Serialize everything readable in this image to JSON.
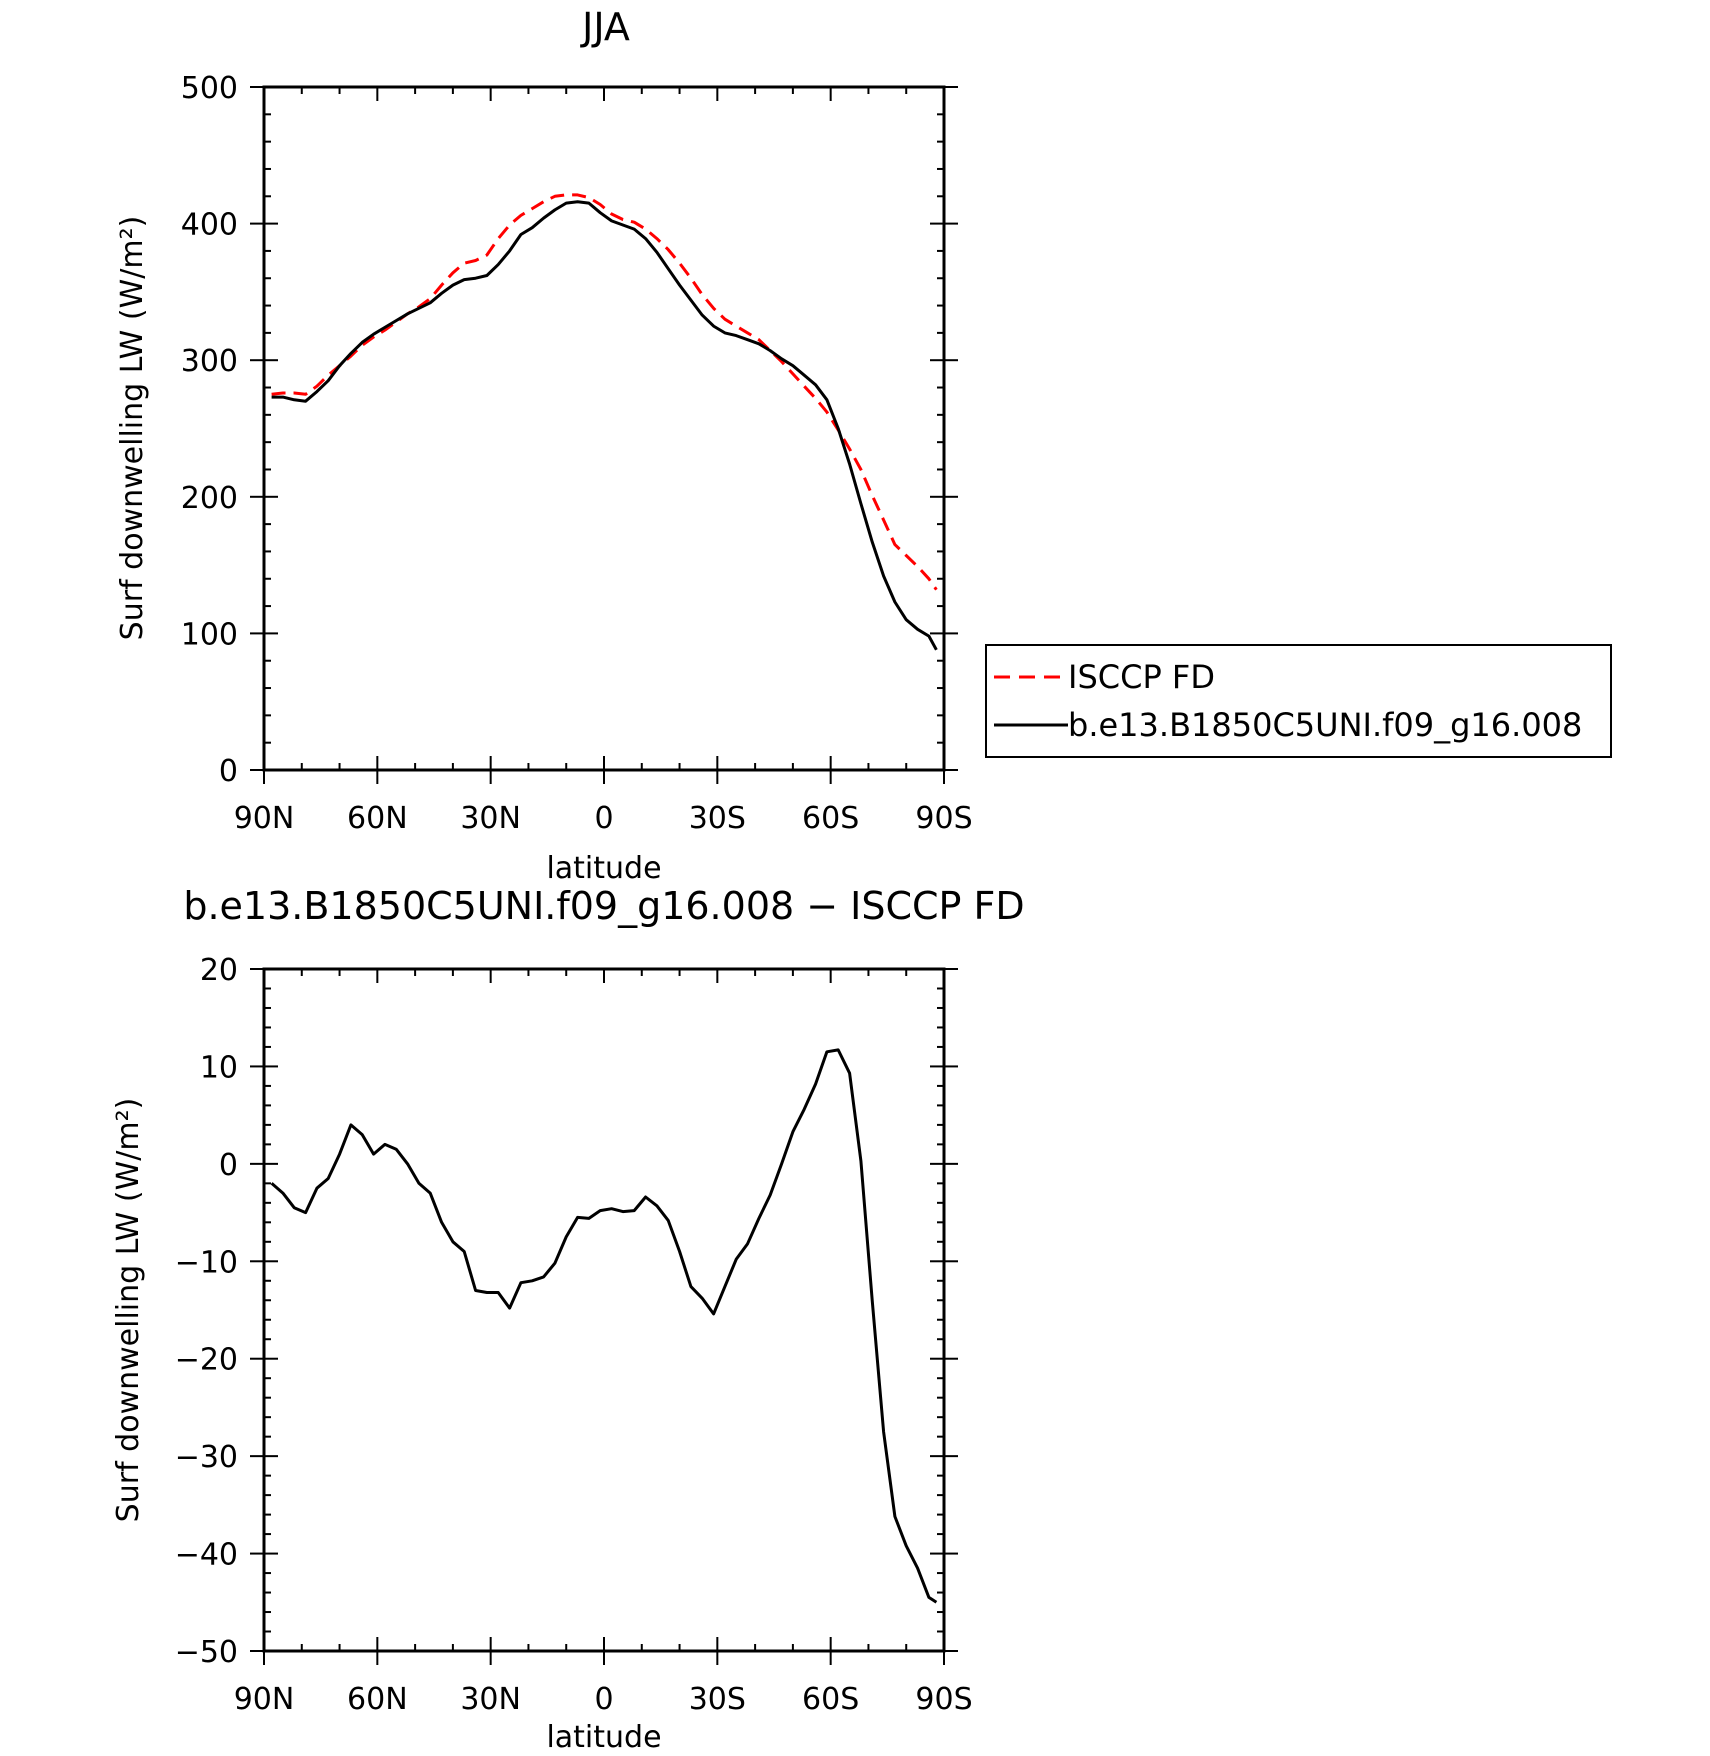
{
  "chart_data": [
    {
      "type": "line",
      "title": "JJA",
      "xlabel": "latitude",
      "ylabel": "Surf downwelling LW (W/m²)",
      "xlim": [
        90,
        -90
      ],
      "ylim": [
        0,
        500
      ],
      "xticks": [
        90,
        60,
        30,
        0,
        -30,
        -60,
        -90
      ],
      "xtick_labels": [
        "90N",
        "60N",
        "30N",
        "0",
        "30S",
        "60S",
        "90S"
      ],
      "yticks": [
        0,
        100,
        200,
        300,
        400,
        500
      ],
      "ytick_labels": [
        "0",
        "100",
        "200",
        "300",
        "400",
        "500"
      ],
      "legend_position": "right",
      "x": [
        88,
        85,
        82,
        79,
        76,
        73,
        70,
        67,
        64,
        61,
        58,
        55,
        52,
        49,
        46,
        43,
        40,
        37,
        34,
        31,
        28,
        25,
        22,
        19,
        16,
        13,
        10,
        7,
        4,
        1,
        -2,
        -5,
        -8,
        -11,
        -14,
        -17,
        -20,
        -23,
        -26,
        -29,
        -32,
        -35,
        -38,
        -41,
        -44,
        -47,
        -50,
        -53,
        -56,
        -59,
        -62,
        -65,
        -68,
        -71,
        -74,
        -77,
        -80,
        -83,
        -86,
        -88
      ],
      "series": [
        {
          "name": "ISCCP FD",
          "color": "#ff0000",
          "dash": "dashed",
          "values": [
            275,
            276,
            276,
            275,
            281,
            289,
            296,
            303,
            311,
            317,
            322,
            328,
            334,
            339,
            345,
            355,
            364,
            371,
            373,
            377,
            389,
            399,
            406,
            411,
            416,
            420,
            421,
            421,
            419,
            414,
            407,
            403,
            401,
            396,
            389,
            381,
            371,
            360,
            348,
            338,
            330,
            325,
            320,
            315,
            307,
            299,
            290,
            281,
            272,
            262,
            249,
            235,
            220,
            201,
            183,
            165,
            157,
            149,
            140,
            132
          ]
        },
        {
          "name": "b.e13.B1850C5UNI.f09_g16.008",
          "color": "#000000",
          "dash": "solid",
          "values": [
            273,
            273,
            271,
            270,
            277,
            285,
            296,
            305,
            313,
            319,
            324,
            329,
            334,
            338,
            342,
            349,
            355,
            359,
            360,
            362,
            370,
            380,
            392,
            397,
            404,
            410,
            415,
            416,
            415,
            408,
            402,
            399,
            396,
            389,
            379,
            367,
            355,
            344,
            333,
            325,
            320,
            318,
            315,
            312,
            307,
            301,
            296,
            289,
            282,
            271,
            250,
            224,
            195,
            167,
            142,
            123,
            110,
            103,
            98,
            88
          ]
        }
      ]
    },
    {
      "type": "line",
      "title": "b.e13.B1850C5UNI.f09_g16.008 − ISCCP FD",
      "xlabel": "latitude",
      "ylabel": "Surf downwelling LW (W/m²)",
      "xlim": [
        90,
        -90
      ],
      "ylim": [
        -50,
        20
      ],
      "xticks": [
        90,
        60,
        30,
        0,
        -30,
        -60,
        -90
      ],
      "xtick_labels": [
        "90N",
        "60N",
        "30N",
        "0",
        "30S",
        "60S",
        "90S"
      ],
      "yticks": [
        20,
        10,
        0,
        -10,
        -20,
        -30,
        -40,
        -50
      ],
      "ytick_labels": [
        "20",
        "10",
        "0",
        "−10",
        "−20",
        "−30",
        "−40",
        "−50"
      ],
      "x": [
        88,
        85,
        82,
        79,
        76,
        73,
        70,
        67,
        64,
        61,
        58,
        55,
        52,
        49,
        46,
        43,
        40,
        37,
        34,
        31,
        28,
        25,
        22,
        19,
        16,
        13,
        10,
        7,
        4,
        1,
        -2,
        -5,
        -8,
        -11,
        -14,
        -17,
        -20,
        -23,
        -26,
        -29,
        -32,
        -35,
        -38,
        -41,
        -44,
        -47,
        -50,
        -53,
        -56,
        -59,
        -62,
        -65,
        -68,
        -71,
        -74,
        -77,
        -80,
        -83,
        -86,
        -88
      ],
      "series": [
        {
          "color": "#000000",
          "values": [
            -2,
            -3,
            -4.5,
            -5,
            -2.5,
            -1.5,
            1,
            4,
            3,
            1,
            2,
            1.5,
            0,
            -2,
            -3,
            -6,
            -8,
            -9,
            -13,
            -13.2,
            -13.2,
            -14.8,
            -12.2,
            -12,
            -11.6,
            -10.2,
            -7.5,
            -5.5,
            -5.6,
            -4.8,
            -4.6,
            -4.9,
            -4.8,
            -3.4,
            -4.3,
            -5.8,
            -9,
            -12.6,
            -13.8,
            -15.4,
            -12.6,
            -9.8,
            -8.2,
            -5.6,
            -3.2,
            0,
            3.3,
            5.6,
            8.2,
            11.5,
            11.7,
            9.3,
            0.3,
            -14,
            -27.5,
            -36.2,
            -39.2,
            -41.5,
            -44.5,
            -45
          ]
        }
      ]
    }
  ]
}
